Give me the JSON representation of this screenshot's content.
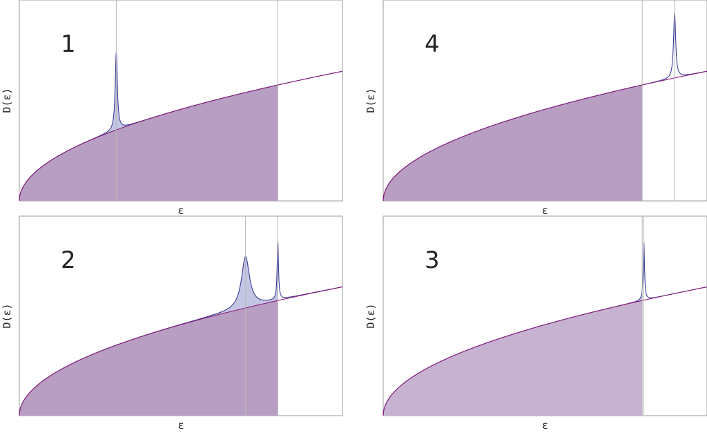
{
  "colors": {
    "sqrt_curve": "#8a1a7a",
    "peak_curve": "#3a3a9a",
    "fill_filled": "#b99ec3",
    "fill_light": "#c8b2d2",
    "peak_fill": "#c3c6e3",
    "frame": "#9a9a9a",
    "marker_line": "#b8b8b8"
  },
  "chart_data": [
    {
      "type": "area",
      "panel_label": "1",
      "xlabel": "ε",
      "ylabel": "D(ε)",
      "xlim": [
        0,
        1
      ],
      "ylim": [
        0,
        1.55
      ],
      "grid": false,
      "curve": "sqrt",
      "fermi_level": 0.8,
      "fill_style": "filled",
      "peaks": [
        {
          "x0": 0.3,
          "height": 0.6,
          "width": 0.004
        }
      ]
    },
    {
      "type": "area",
      "panel_label": "4",
      "xlabel": "ε",
      "ylabel": "D(ε)",
      "xlim": [
        0,
        1
      ],
      "ylim": [
        0,
        1.55
      ],
      "grid": false,
      "curve": "sqrt",
      "fermi_level": 0.8,
      "fill_style": "filled",
      "peaks": [
        {
          "x0": 0.9,
          "height": 0.5,
          "width": 0.004
        }
      ]
    },
    {
      "type": "area",
      "panel_label": "2",
      "xlabel": "ε",
      "ylabel": "D(ε)",
      "xlim": [
        0,
        1
      ],
      "ylim": [
        0,
        1.55
      ],
      "grid": false,
      "curve": "sqrt",
      "fermi_level": 0.8,
      "fill_style": "filled",
      "peaks": [
        {
          "x0": 0.7,
          "height": 0.4,
          "width": 0.015
        },
        {
          "x0": 0.8,
          "height": 0.45,
          "width": 0.0025
        }
      ]
    },
    {
      "type": "area",
      "panel_label": "3",
      "xlabel": "ε",
      "ylabel": "D(ε)",
      "xlim": [
        0,
        1
      ],
      "ylim": [
        0,
        1.55
      ],
      "grid": false,
      "curve": "sqrt",
      "fermi_level": 0.8,
      "fill_style": "light",
      "peaks": [
        {
          "x0": 0.805,
          "height": 0.45,
          "width": 0.0025
        }
      ]
    }
  ]
}
